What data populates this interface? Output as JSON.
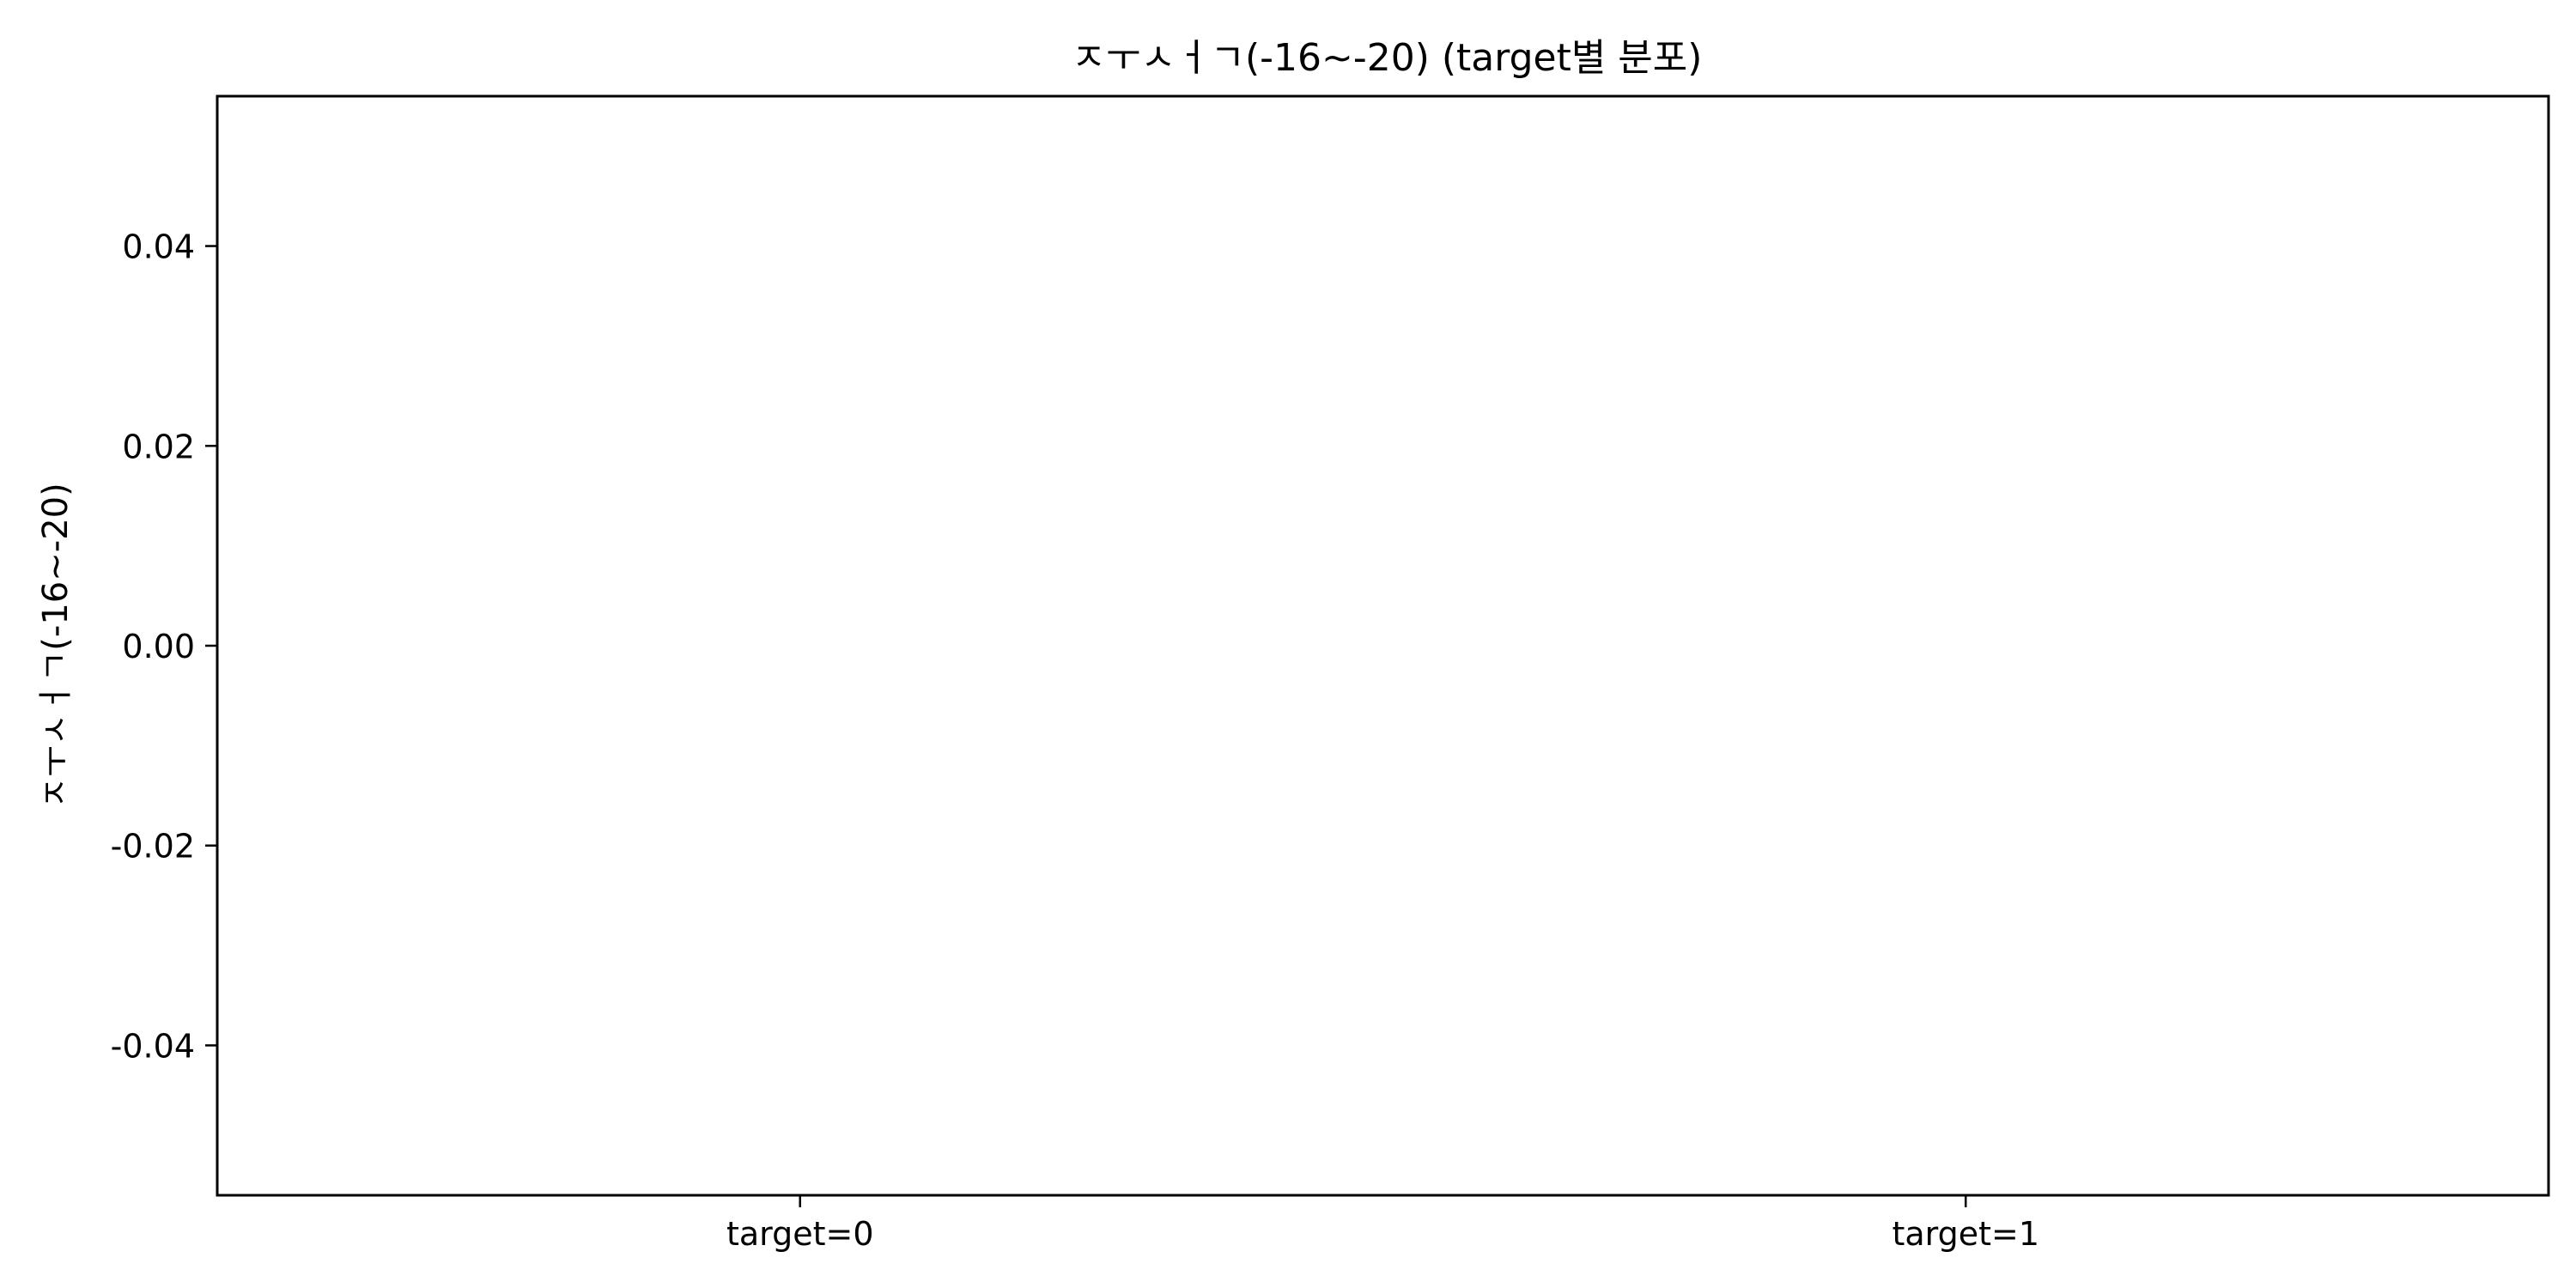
{
  "chart_data": {
    "type": "box",
    "title": "ㅈㅜㅅㅓㄱ(-16~-20) (target별 분포)",
    "xlabel": "",
    "ylabel": "ㅈㅜㅅㅓㄱ(-16~-20)",
    "categories": [
      "target=0",
      "target=1"
    ],
    "series": [],
    "ylim": [
      -0.055,
      0.055
    ],
    "y_ticks": [
      -0.04,
      -0.02,
      0.0,
      0.02,
      0.04
    ],
    "y_tick_labels": [
      "-0.04",
      "-0.02",
      "0.00",
      "0.02",
      "0.04"
    ],
    "grid": false,
    "legend": "none",
    "colors": {
      "axis": "#000000",
      "background": "#ffffff"
    }
  }
}
